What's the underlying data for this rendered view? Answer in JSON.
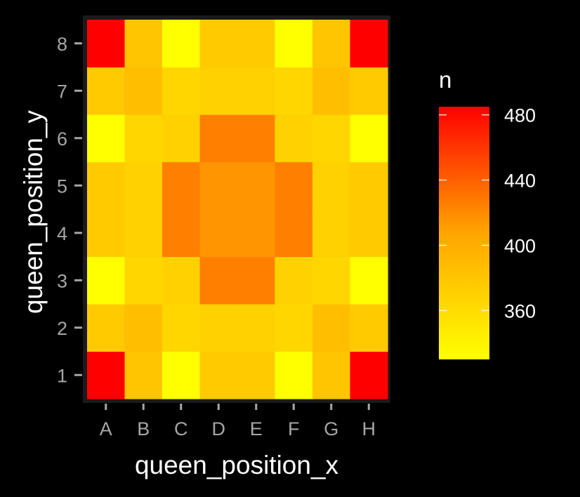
{
  "chart_data": {
    "type": "heatmap",
    "xlabel": "queen_position_x",
    "ylabel": "queen_position_y",
    "x_categories": [
      "A",
      "B",
      "C",
      "D",
      "E",
      "F",
      "G",
      "H"
    ],
    "y_categories": [
      "1",
      "2",
      "3",
      "4",
      "5",
      "6",
      "7",
      "8"
    ],
    "values_by_row_y1_to_y8": [
      [
        485,
        380,
        330,
        375,
        375,
        330,
        380,
        485
      ],
      [
        375,
        385,
        365,
        370,
        370,
        365,
        385,
        375
      ],
      [
        330,
        365,
        370,
        425,
        425,
        370,
        365,
        330
      ],
      [
        375,
        370,
        425,
        415,
        415,
        425,
        370,
        375
      ],
      [
        375,
        370,
        425,
        415,
        415,
        425,
        370,
        375
      ],
      [
        330,
        365,
        370,
        425,
        425,
        370,
        365,
        330
      ],
      [
        375,
        385,
        365,
        370,
        370,
        365,
        385,
        375
      ],
      [
        485,
        380,
        330,
        375,
        375,
        330,
        380,
        485
      ]
    ],
    "legend": {
      "title": "n",
      "ticks": [
        360,
        400,
        440,
        480
      ],
      "range": [
        330,
        485
      ],
      "low_color": "#ffff00",
      "high_color": "#ff0000",
      "placement": "right"
    },
    "grid": false,
    "background": "#000000",
    "panel_border": "#1a1a1a"
  }
}
